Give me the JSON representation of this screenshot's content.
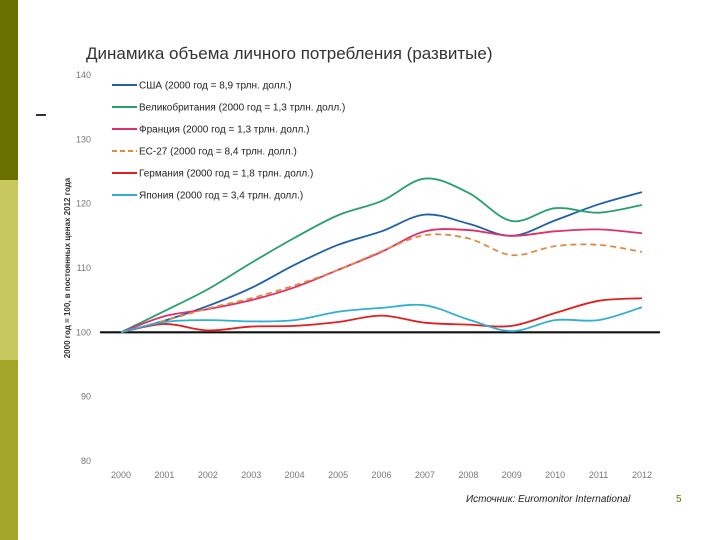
{
  "slide": {
    "title": "Динамика объема личного потребления (развитые)",
    "source": "Источник: Euromonitor International",
    "page_number": "5"
  },
  "colors": {
    "stripe_dark": "#6b7100",
    "stripe_light": "#c7c95e",
    "stripe_mid": "#a3a62a"
  },
  "chart_data": {
    "type": "line",
    "title": "",
    "xlabel": "",
    "ylabel": "2000 год = 100, в постоянных ценах 2012 года",
    "ylim": [
      80,
      140
    ],
    "yticks": [
      80,
      90,
      100,
      110,
      120,
      130,
      140
    ],
    "grid": false,
    "legend_position": "top-left",
    "x": [
      "2000",
      "2001",
      "2002",
      "2003",
      "2004",
      "2005",
      "2006",
      "2007",
      "2008",
      "2009",
      "2010",
      "2011",
      "2012"
    ],
    "baseline": 100,
    "series": [
      {
        "name": "США (2000 год = 8,9 трлн. долл.)",
        "color": "#2060a8",
        "dash": false,
        "values": [
          100,
          101.8,
          104.1,
          106.9,
          110.5,
          113.6,
          115.7,
          118.3,
          116.9,
          115.0,
          117.4,
          119.9,
          121.8
        ]
      },
      {
        "name": "Великобритания (2000 год = 1,3 трлн. долл.)",
        "color": "#27a06a",
        "dash": false,
        "values": [
          100,
          103.3,
          106.7,
          110.8,
          114.7,
          118.2,
          120.4,
          123.9,
          121.7,
          117.3,
          119.3,
          118.6,
          119.8
        ]
      },
      {
        "name": "Франция (2000 год = 1,3 трлн. долл.)",
        "color": "#e0306a",
        "dash": false,
        "values": [
          100,
          102.5,
          103.6,
          105.0,
          107.0,
          109.7,
          112.5,
          115.7,
          115.9,
          115.0,
          115.7,
          116.0,
          115.4
        ]
      },
      {
        "name": "ЕС-27 (2000 год = 8,4 трлн. долл.)",
        "color": "#e08a40",
        "dash": true,
        "values": [
          100,
          101.8,
          103.7,
          105.3,
          107.3,
          109.7,
          112.6,
          115.1,
          114.6,
          112.0,
          113.4,
          113.6,
          112.5
        ]
      },
      {
        "name": "Германия (2000 год = 1,8 трлн. долл.)",
        "color": "#e02020",
        "dash": false,
        "values": [
          100,
          101.3,
          100.3,
          100.9,
          101.0,
          101.6,
          102.6,
          101.5,
          101.2,
          101.0,
          103.0,
          104.9,
          105.3
        ]
      },
      {
        "name": "Япония (2000 год = 3,4 трлн. долл.)",
        "color": "#30b0d0",
        "dash": false,
        "values": [
          100,
          101.6,
          101.9,
          101.7,
          101.9,
          103.2,
          103.8,
          104.2,
          102.0,
          100.2,
          101.9,
          101.9,
          103.9
        ]
      }
    ]
  }
}
